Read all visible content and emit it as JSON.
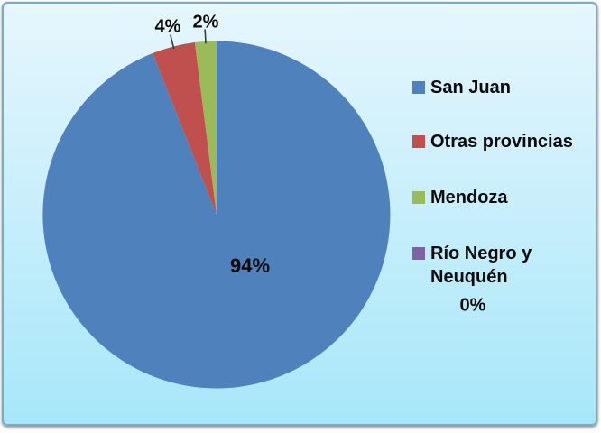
{
  "chart_data": {
    "type": "pie",
    "title": "",
    "unit": "%",
    "direction": "clockwise",
    "start_angle_deg": 0,
    "legend_position": "right",
    "series": [
      {
        "label": "San Juan",
        "value": 94,
        "display": "94%",
        "color": "#4F81BD",
        "label_placement": "inside"
      },
      {
        "label": "Otras provincias",
        "value": 4,
        "display": "4%",
        "color": "#C0504D",
        "label_placement": "outside-top"
      },
      {
        "label": "Mendoza",
        "value": 2,
        "display": "2%",
        "color": "#9BBB59",
        "label_placement": "outside-top"
      },
      {
        "label": "Río Negro y Neuquén",
        "value": 0,
        "display": "0%",
        "color": "#8064A2",
        "label_placement": "near-legend"
      }
    ]
  },
  "colors": {
    "background_top": "#E6F6FD",
    "background_bottom": "#A7E7F9",
    "frame_border": "#7AACC0",
    "label_text": "#0A0A0A",
    "leader_tick": "#3A3A3A"
  }
}
